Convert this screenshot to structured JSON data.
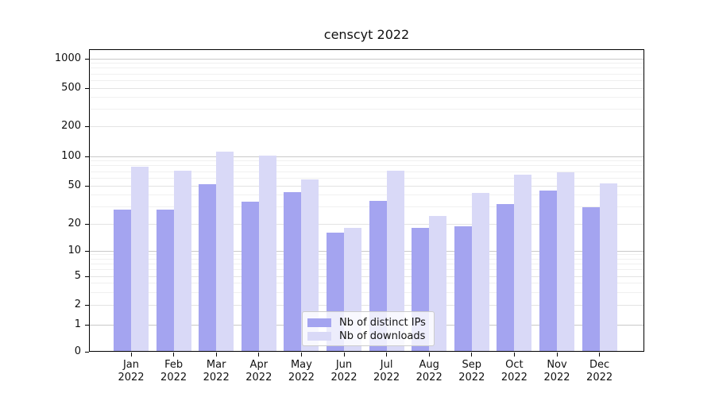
{
  "chart_data": {
    "type": "bar",
    "title": "censcyt 2022",
    "categories": [
      "Jan 2022",
      "Feb 2022",
      "Mar 2022",
      "Apr 2022",
      "May 2022",
      "Jun 2022",
      "Jul 2022",
      "Aug 2022",
      "Sep 2022",
      "Oct 2022",
      "Nov 2022",
      "Dec 2022"
    ],
    "series": [
      {
        "name": "Nb of distinct IPs",
        "color": "#a4a4f0",
        "values": [
          28,
          28,
          52,
          34,
          43,
          16,
          35,
          18,
          19,
          32,
          45,
          30
        ]
      },
      {
        "name": "Nb of downloads",
        "color": "#d9d9f7",
        "values": [
          79,
          72,
          112,
          102,
          58,
          18,
          72,
          24,
          42,
          65,
          69,
          53
        ]
      }
    ],
    "xlabel": "",
    "ylabel": "",
    "yscale": "log-like (0,1,2,5,10,20,50,100,200,500,1000)",
    "yticks": [
      0,
      1,
      2,
      5,
      10,
      20,
      50,
      100,
      200,
      500,
      1000
    ],
    "ylim": [
      0,
      1400
    ],
    "grid": true,
    "legend_position": "lower center inside plot",
    "colors": {
      "major_gridline": "#c9c9c9",
      "labeled_gridline": "#e3e3e3",
      "minor_gridline": "#f0f0f0",
      "axis": "#000000",
      "background": "#ffffff"
    }
  }
}
